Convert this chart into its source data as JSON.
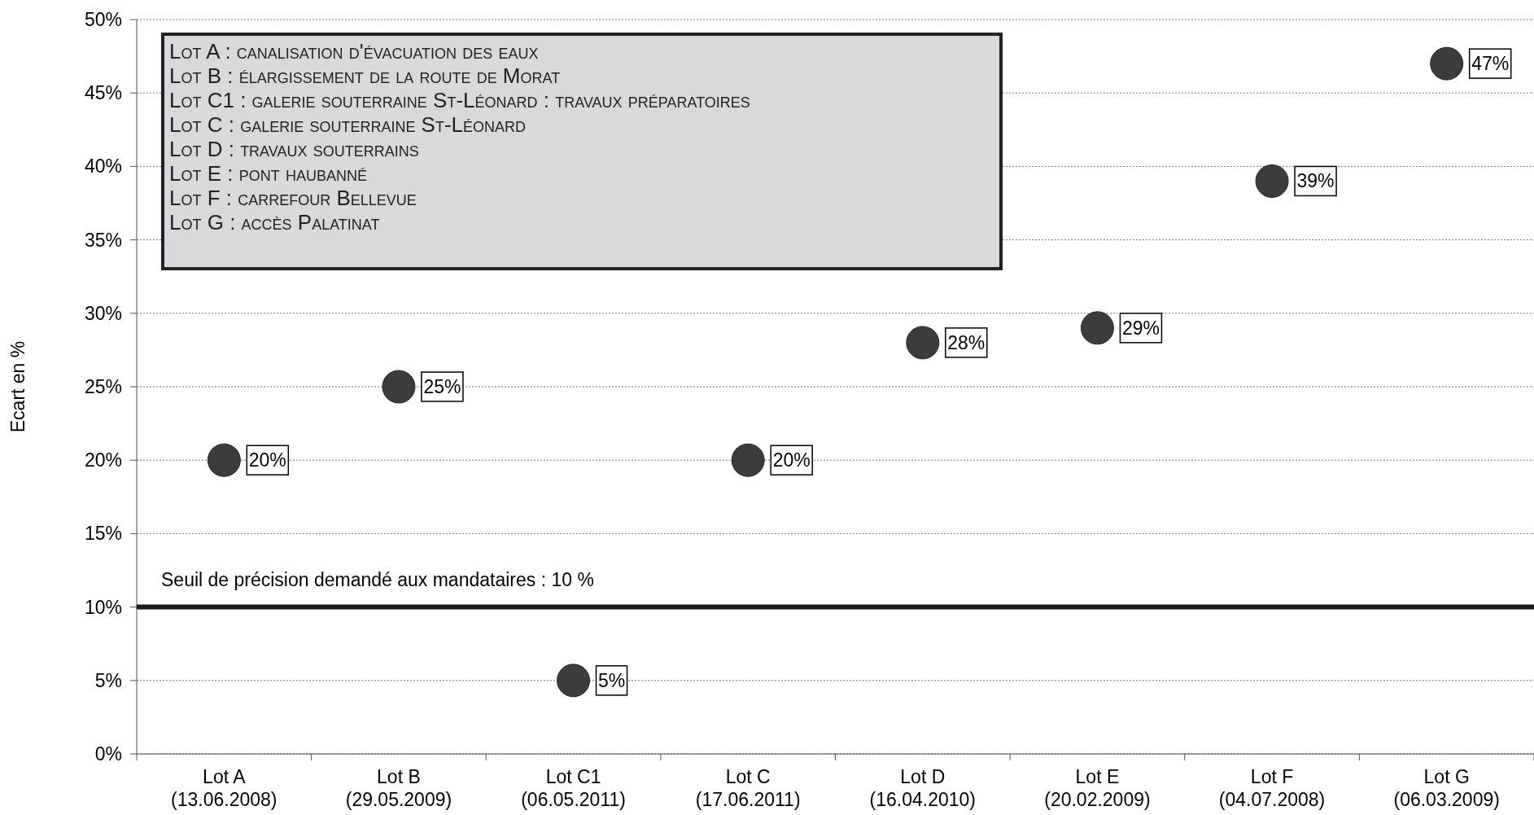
{
  "chart_data": {
    "type": "scatter",
    "ylabel": "Ecart en %",
    "categories": [
      "Lot A\n(13.06.2008)",
      "Lot B\n(29.05.2009)",
      "Lot C1\n(06.05.2011)",
      "Lot C\n(17.06.2011)",
      "Lot D\n(16.04.2010)",
      "Lot E\n(20.02.2009)",
      "Lot F\n(04.07.2008)",
      "Lot G\n(06.03.2009)"
    ],
    "series": [
      {
        "color": "#3c3c3c",
        "values": [
          20,
          25,
          5,
          20,
          28,
          29,
          39,
          47
        ],
        "value_labels": [
          "20%",
          "25%",
          "5%",
          "20%",
          "28%",
          "29%",
          "39%",
          "47%"
        ]
      }
    ],
    "ylim": [
      0,
      50
    ],
    "yticks": [
      {
        "value": 0,
        "label": "0%"
      },
      {
        "value": 5,
        "label": "5%"
      },
      {
        "value": 10,
        "label": "10%"
      },
      {
        "value": 15,
        "label": "15%"
      },
      {
        "value": 20,
        "label": "20%"
      },
      {
        "value": 25,
        "label": "25%"
      },
      {
        "value": 30,
        "label": "30%"
      },
      {
        "value": 35,
        "label": "35%"
      },
      {
        "value": 40,
        "label": "40%"
      },
      {
        "value": 45,
        "label": "45%"
      },
      {
        "value": 50,
        "label": "50%"
      }
    ],
    "grid": "y",
    "marker": "circle",
    "ref_lines": [
      {
        "axis": "y",
        "value": 10,
        "label": "Seuil de précision demandé aux mandataires : 10 %",
        "color": "#1a1a1a"
      }
    ],
    "annotations": [
      "Lot A : canalisation d'évacuation des eaux",
      "Lot B : élargissement de la route de Morat",
      "Lot C1 : galerie souterraine St-Léonard : travaux préparatoires",
      "Lot C : galerie souterraine St-Léonard",
      "Lot D : travaux souterrains",
      "Lot E : pont haubanné",
      "Lot F : carrefour Bellevue",
      "Lot G : accès Palatinat"
    ]
  }
}
